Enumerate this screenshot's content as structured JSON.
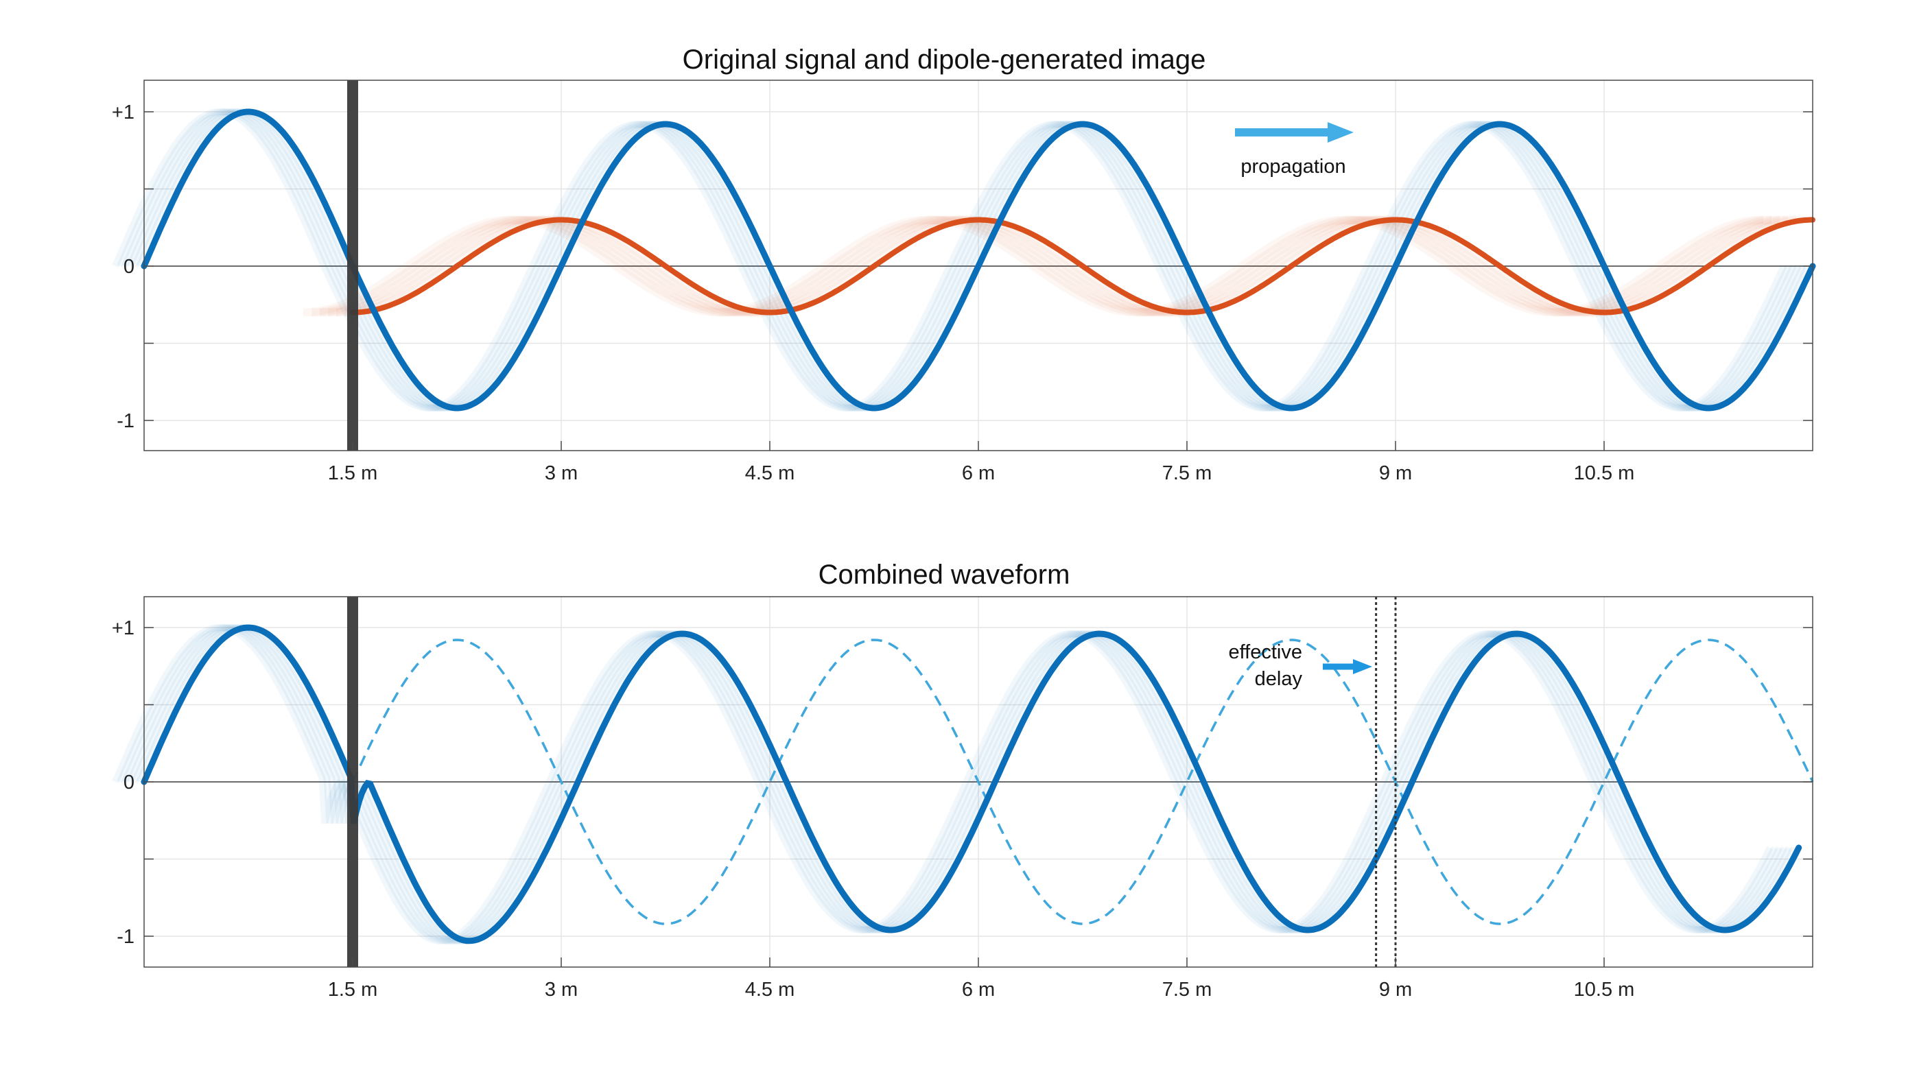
{
  "chart_data": [
    {
      "type": "line",
      "title": "Original signal and dipole-generated image",
      "xlim": [
        0,
        12
      ],
      "ylim": [
        -1.2,
        1.2
      ],
      "x_ticks": [
        1.5,
        3,
        4.5,
        6,
        7.5,
        9,
        10.5
      ],
      "x_tick_labels": [
        "1.5 m",
        "3 m",
        "4.5 m",
        "6 m",
        "7.5 m",
        "9 m",
        "10.5 m"
      ],
      "y_ticks": [
        1,
        0,
        -1
      ],
      "y_tick_labels": [
        "+1",
        "0",
        "-1"
      ],
      "grid": true,
      "boundary_x": 1.5,
      "colors": {
        "original": "#0a6fb8",
        "image": "#d9501c",
        "boundary": "#3a3a3a",
        "arrow": "#43aee6"
      },
      "annotation": "propagation",
      "series": [
        {
          "style": "original",
          "x_start": 0,
          "x_end": 12,
          "amplitude_first_cycle": 1.0,
          "amplitude_after_boundary": 0.92,
          "wavelength": 3.0
        },
        {
          "style": "image",
          "x_start": 1.5,
          "x_end": 12,
          "amplitude": 0.3,
          "wavelength": 3.0,
          "value_at_start": -0.3
        }
      ]
    },
    {
      "type": "line",
      "title": "Combined waveform",
      "xlim": [
        0,
        12
      ],
      "ylim": [
        -1.2,
        1.2
      ],
      "x_ticks": [
        1.5,
        3,
        4.5,
        6,
        7.5,
        9,
        10.5
      ],
      "x_tick_labels": [
        "1.5 m",
        "3 m",
        "4.5 m",
        "6 m",
        "7.5 m",
        "9 m",
        "10.5 m"
      ],
      "y_ticks": [
        1,
        0,
        -1
      ],
      "y_tick_labels": [
        "+1",
        "0",
        "-1"
      ],
      "grid": true,
      "boundary_x": 1.5,
      "delay_markers_x": [
        8.86,
        9.0
      ],
      "colors": {
        "combined": "#0a6fb8",
        "reference": "#3fa7dc",
        "boundary": "#3a3a3a",
        "arrow": "#1f97e0"
      },
      "annotation": [
        "effective",
        "delay"
      ],
      "series": [
        {
          "style": "combined",
          "x_start": 0,
          "x_end": 11.9,
          "amplitude_first_cycle": 1.0,
          "amplitude_after_boundary": 0.96,
          "wavelength": 3.0,
          "minimum_first_trough": -1.05
        },
        {
          "style": "reference-dashed",
          "x_start": 1.5,
          "x_end": 12,
          "amplitude": 0.92,
          "wavelength": 3.0
        }
      ]
    }
  ]
}
